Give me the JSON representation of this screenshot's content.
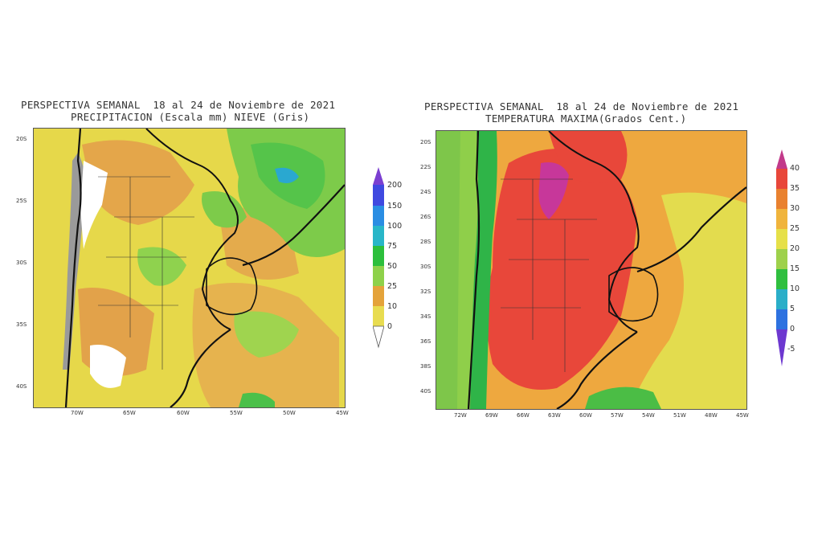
{
  "maps": [
    {
      "title_line1": "PERSPECTIVA SEMANAL  18 al 24 de Noviembre de 2021",
      "title_line2": "PRECIPITACION (Escala mm) NIEVE (Gris)",
      "lat_ticks": [
        "20S",
        "25S",
        "30S",
        "35S",
        "40S"
      ],
      "lon_ticks": [
        "70W",
        "65W",
        "60W",
        "55W",
        "50W",
        "45W"
      ],
      "colorbar_labels": [
        "200",
        "150",
        "100",
        "75",
        "50",
        "25",
        "10",
        "0"
      ],
      "colorbar_colors": [
        "#7b3fd1",
        "#3f49e0",
        "#2a8de3",
        "#28b6c8",
        "#2cbf3c",
        "#8ed14a",
        "#e4a33a",
        "#e8dc50"
      ]
    },
    {
      "title_line1": "PERSPECTIVA SEMANAL  18 al 24 de Noviembre de 2021",
      "title_line2": "TEMPERATURA MAXIMA(Grados Cent.)",
      "lat_ticks": [
        "20S",
        "22S",
        "24S",
        "26S",
        "28S",
        "30S",
        "32S",
        "34S",
        "36S",
        "38S",
        "40S"
      ],
      "lon_ticks": [
        "72W",
        "69W",
        "66W",
        "63W",
        "60W",
        "57W",
        "54W",
        "51W",
        "48W",
        "45W"
      ],
      "colorbar_labels": [
        "40",
        "35",
        "30",
        "25",
        "20",
        "15",
        "10",
        "5",
        "0",
        "-5"
      ],
      "colorbar_colors": [
        "#c23a8a",
        "#e8473a",
        "#e9812f",
        "#f0b43c",
        "#e6e049",
        "#9ed14b",
        "#2fbf3f",
        "#2aaec8",
        "#2d72e0",
        "#6d38d0"
      ]
    }
  ]
}
